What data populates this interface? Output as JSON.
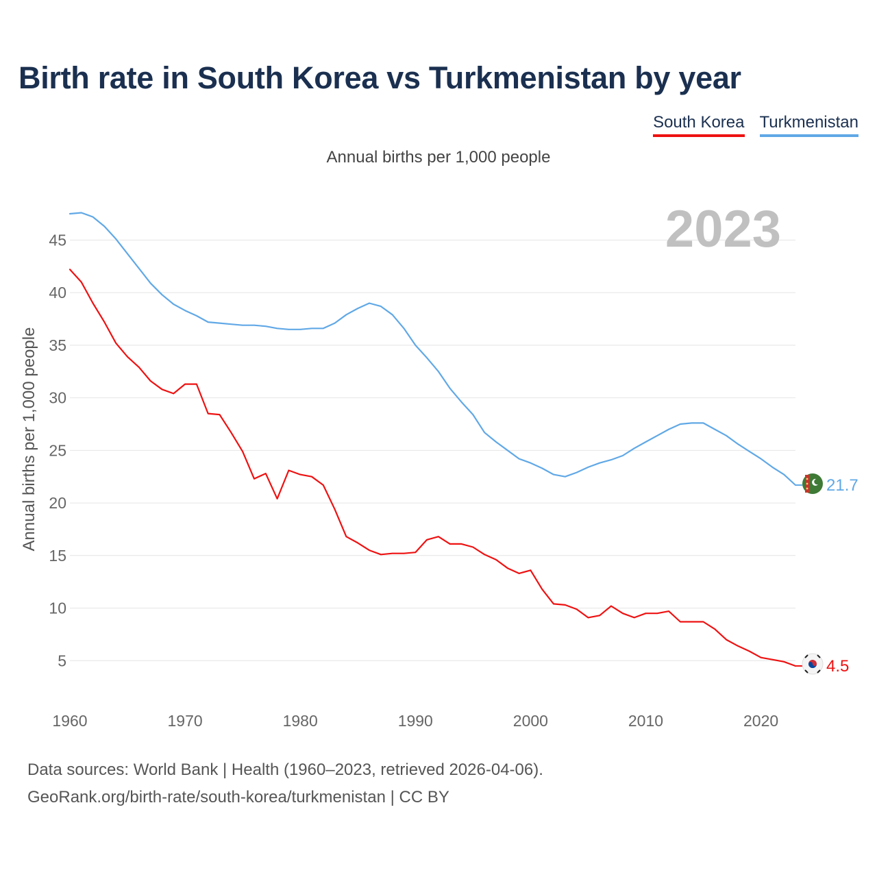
{
  "title": "Birth rate in South Korea vs Turkmenistan by year",
  "subtitle": "Annual births per 1,000 people",
  "legend": [
    {
      "label": "South Korea",
      "color": "#ee1111"
    },
    {
      "label": "Turkmenistan",
      "color": "#60a8e6"
    }
  ],
  "footer": {
    "line1": "Data sources: World Bank | Health (1960–2023, retrieved 2026-04-06).",
    "line2": "GeoRank.org/birth-rate/south-korea/turkmenistan | CC BY"
  },
  "chart_data": {
    "type": "line",
    "title": "Birth rate in South Korea vs Turkmenistan by year",
    "ylabel": "Annual births per 1,000 people",
    "xlabel": "",
    "xlim": [
      1960,
      2023
    ],
    "ylim": [
      1.5,
      47.5
    ],
    "x_ticks": [
      1960,
      1970,
      1980,
      1990,
      2000,
      2010,
      2020
    ],
    "y_ticks": [
      5,
      10,
      15,
      20,
      25,
      30,
      35,
      40,
      45
    ],
    "grid": true,
    "year_label": "2023",
    "x": [
      1960,
      1961,
      1962,
      1963,
      1964,
      1965,
      1966,
      1967,
      1968,
      1969,
      1970,
      1971,
      1972,
      1973,
      1974,
      1975,
      1976,
      1977,
      1978,
      1979,
      1980,
      1981,
      1982,
      1983,
      1984,
      1985,
      1986,
      1987,
      1988,
      1989,
      1990,
      1991,
      1992,
      1993,
      1994,
      1995,
      1996,
      1997,
      1998,
      1999,
      2000,
      2001,
      2002,
      2003,
      2004,
      2005,
      2006,
      2007,
      2008,
      2009,
      2010,
      2011,
      2012,
      2013,
      2014,
      2015,
      2016,
      2017,
      2018,
      2019,
      2020,
      2021,
      2022,
      2023
    ],
    "series": [
      {
        "name": "South Korea",
        "color": "#ee1111",
        "end_label": "4.5",
        "values": [
          42.2,
          41.0,
          39.0,
          37.2,
          35.2,
          33.9,
          32.9,
          31.6,
          30.8,
          30.4,
          31.3,
          31.3,
          28.5,
          28.4,
          26.7,
          24.9,
          22.3,
          22.8,
          20.4,
          23.1,
          22.7,
          22.5,
          21.7,
          19.4,
          16.8,
          16.2,
          15.5,
          15.1,
          15.2,
          15.2,
          15.3,
          16.5,
          16.8,
          16.1,
          16.1,
          15.8,
          15.1,
          14.6,
          13.8,
          13.3,
          13.6,
          11.8,
          10.4,
          10.3,
          9.9,
          9.1,
          9.3,
          10.2,
          9.5,
          9.1,
          9.5,
          9.5,
          9.7,
          8.7,
          8.7,
          8.7,
          8.0,
          7.0,
          6.4,
          5.9,
          5.3,
          5.1,
          4.9,
          4.5
        ]
      },
      {
        "name": "Turkmenistan",
        "color": "#60a8e6",
        "end_label": "21.7",
        "values": [
          47.5,
          47.6,
          47.2,
          46.3,
          45.1,
          43.7,
          42.3,
          40.9,
          39.8,
          38.9,
          38.3,
          37.8,
          37.2,
          37.1,
          37.0,
          36.9,
          36.9,
          36.8,
          36.6,
          36.5,
          36.5,
          36.6,
          36.6,
          37.1,
          37.9,
          38.5,
          39.0,
          38.7,
          37.9,
          36.6,
          35.0,
          33.8,
          32.5,
          30.9,
          29.6,
          28.4,
          26.7,
          25.8,
          25.0,
          24.2,
          23.8,
          23.3,
          22.7,
          22.5,
          22.9,
          23.4,
          23.8,
          24.1,
          24.5,
          25.2,
          25.8,
          26.4,
          27.0,
          27.5,
          27.6,
          27.6,
          27.0,
          26.4,
          25.6,
          24.9,
          24.2,
          23.4,
          22.7,
          21.7
        ]
      }
    ]
  }
}
